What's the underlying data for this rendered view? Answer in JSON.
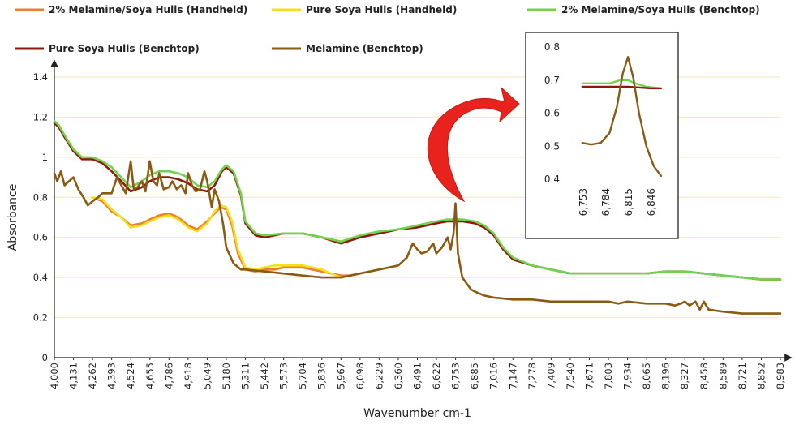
{
  "chart_data": [
    {
      "type": "line",
      "title": "",
      "xlabel": "Wavenumber cm-1",
      "ylabel": "Absorbance",
      "xlim": [
        4000,
        8983
      ],
      "ylim": [
        0,
        1.4
      ],
      "yticks": [
        "0",
        "0.2",
        "0.4",
        "0.6",
        "0.8",
        "1",
        "1.2",
        "1.4"
      ],
      "xticks": [
        "4,000",
        "4,131",
        "4,262",
        "4,393",
        "4,524",
        "4,655",
        "4,786",
        "4,918",
        "5,049",
        "5,180",
        "5,311",
        "5,442",
        "5,573",
        "5,704",
        "5,836",
        "5,967",
        "6,098",
        "6,229",
        "6,360",
        "6,491",
        "6,622",
        "6,753",
        "6,885",
        "7,016",
        "7,147",
        "7,278",
        "7,409",
        "7,540",
        "7,671",
        "7,803",
        "7,934",
        "8,065",
        "8,196",
        "8,327",
        "8,458",
        "8,589",
        "8,721",
        "8,852",
        "8,983"
      ],
      "grid": "horizontal",
      "legend_position": "top",
      "series": [
        {
          "name": "2% Melamine/Soya Hulls (Handheld)",
          "color": "#ed7d31",
          "x": [
            4262,
            4330,
            4393,
            4460,
            4524,
            4600,
            4655,
            4720,
            4786,
            4850,
            4918,
            4980,
            5049,
            5100,
            5140,
            5180,
            5220,
            5260,
            5311,
            5380,
            5442,
            5510,
            5573,
            5640,
            5704,
            5770,
            5836,
            5900,
            5967,
            6030,
            6098
          ],
          "values": [
            0.8,
            0.78,
            0.73,
            0.7,
            0.66,
            0.67,
            0.69,
            0.71,
            0.72,
            0.7,
            0.66,
            0.64,
            0.68,
            0.72,
            0.75,
            0.74,
            0.66,
            0.52,
            0.44,
            0.43,
            0.44,
            0.44,
            0.45,
            0.45,
            0.45,
            0.44,
            0.43,
            0.42,
            0.41,
            0.41,
            0.42
          ]
        },
        {
          "name": "Pure Soya Hulls (Handheld)",
          "color": "#f2e01a",
          "x": [
            4262,
            4330,
            4393,
            4460,
            4524,
            4600,
            4655,
            4720,
            4786,
            4850,
            4918,
            4980,
            5049,
            5100,
            5140,
            5180,
            5220,
            5260,
            5311,
            5380,
            5442,
            5510,
            5573,
            5640,
            5704,
            5770,
            5836,
            5900,
            5967,
            6030,
            6098
          ],
          "values": [
            0.8,
            0.79,
            0.74,
            0.7,
            0.65,
            0.66,
            0.68,
            0.7,
            0.71,
            0.69,
            0.65,
            0.63,
            0.67,
            0.73,
            0.76,
            0.75,
            0.68,
            0.54,
            0.45,
            0.44,
            0.45,
            0.46,
            0.46,
            0.46,
            0.46,
            0.45,
            0.44,
            0.42,
            0.4,
            0.41,
            0.42
          ]
        },
        {
          "name": "2% Melamine/Soya Hulls (Benchtop)",
          "color": "#70d24e",
          "x": [
            4000,
            4030,
            4070,
            4131,
            4190,
            4262,
            4330,
            4393,
            4460,
            4524,
            4600,
            4655,
            4720,
            4786,
            4850,
            4918,
            4980,
            5049,
            5100,
            5150,
            5180,
            5230,
            5280,
            5311,
            5380,
            5442,
            5573,
            5704,
            5836,
            5967,
            6098,
            6229,
            6360,
            6491,
            6622,
            6700,
            6753,
            6800,
            6885,
            6950,
            7016,
            7080,
            7147,
            7278,
            7409,
            7540,
            7671,
            7803,
            7934,
            8065,
            8196,
            8327,
            8458,
            8589,
            8721,
            8852,
            8983
          ],
          "values": [
            1.18,
            1.16,
            1.11,
            1.04,
            1.0,
            1.0,
            0.98,
            0.95,
            0.9,
            0.85,
            0.88,
            0.91,
            0.93,
            0.93,
            0.92,
            0.9,
            0.86,
            0.85,
            0.88,
            0.94,
            0.96,
            0.93,
            0.82,
            0.68,
            0.62,
            0.61,
            0.62,
            0.62,
            0.6,
            0.58,
            0.61,
            0.63,
            0.64,
            0.66,
            0.68,
            0.69,
            0.69,
            0.69,
            0.68,
            0.66,
            0.62,
            0.55,
            0.5,
            0.46,
            0.44,
            0.42,
            0.42,
            0.42,
            0.42,
            0.42,
            0.43,
            0.43,
            0.42,
            0.41,
            0.4,
            0.39,
            0.39
          ]
        },
        {
          "name": "Pure Soya Hulls (Benchtop)",
          "color": "#8b1a0a",
          "x": [
            4000,
            4030,
            4070,
            4131,
            4190,
            4262,
            4330,
            4393,
            4460,
            4524,
            4600,
            4655,
            4720,
            4786,
            4850,
            4918,
            4980,
            5049,
            5100,
            5150,
            5180,
            5230,
            5280,
            5311,
            5380,
            5442,
            5573,
            5704,
            5836,
            5967,
            6098,
            6229,
            6360,
            6491,
            6622,
            6700,
            6753,
            6800,
            6885,
            6950,
            7016,
            7080,
            7147,
            7278,
            7409,
            7540,
            7671,
            7803,
            7934,
            8065,
            8196,
            8327,
            8458,
            8589,
            8721,
            8852,
            8983
          ],
          "values": [
            1.17,
            1.15,
            1.1,
            1.03,
            0.99,
            0.99,
            0.97,
            0.93,
            0.88,
            0.83,
            0.85,
            0.88,
            0.9,
            0.9,
            0.89,
            0.87,
            0.84,
            0.83,
            0.86,
            0.93,
            0.95,
            0.92,
            0.81,
            0.67,
            0.61,
            0.6,
            0.62,
            0.62,
            0.6,
            0.57,
            0.6,
            0.62,
            0.64,
            0.65,
            0.67,
            0.68,
            0.68,
            0.68,
            0.67,
            0.65,
            0.61,
            0.54,
            0.49,
            0.46,
            0.44,
            0.42,
            0.42,
            0.42,
            0.42,
            0.42,
            0.43,
            0.43,
            0.42,
            0.41,
            0.4,
            0.39,
            0.39
          ]
        },
        {
          "name": "Melamine (Benchtop)",
          "color": "#8a5a12",
          "x": [
            4000,
            4020,
            4045,
            4070,
            4100,
            4131,
            4165,
            4200,
            4230,
            4262,
            4300,
            4330,
            4393,
            4430,
            4460,
            4490,
            4524,
            4545,
            4570,
            4600,
            4625,
            4655,
            4680,
            4705,
            4720,
            4750,
            4786,
            4810,
            4840,
            4870,
            4900,
            4918,
            4945,
            4970,
            5000,
            5030,
            5049,
            5080,
            5100,
            5130,
            5160,
            5180,
            5230,
            5280,
            5311,
            5442,
            5573,
            5704,
            5836,
            5967,
            6098,
            6229,
            6360,
            6420,
            6460,
            6491,
            6520,
            6560,
            6600,
            6622,
            6660,
            6700,
            6720,
            6740,
            6753,
            6770,
            6800,
            6830,
            6860,
            6885,
            6950,
            7016,
            7147,
            7278,
            7409,
            7540,
            7671,
            7803,
            7870,
            7934,
            8065,
            8196,
            8260,
            8300,
            8327,
            8360,
            8400,
            8430,
            8458,
            8490,
            8589,
            8721,
            8852,
            8983
          ],
          "values": [
            0.92,
            0.88,
            0.93,
            0.86,
            0.88,
            0.9,
            0.84,
            0.8,
            0.76,
            0.78,
            0.8,
            0.82,
            0.82,
            0.9,
            0.86,
            0.82,
            0.98,
            0.84,
            0.85,
            0.88,
            0.83,
            0.98,
            0.88,
            0.86,
            0.92,
            0.84,
            0.85,
            0.88,
            0.84,
            0.86,
            0.82,
            0.92,
            0.86,
            0.83,
            0.84,
            0.93,
            0.88,
            0.75,
            0.84,
            0.78,
            0.66,
            0.55,
            0.47,
            0.44,
            0.44,
            0.43,
            0.42,
            0.41,
            0.4,
            0.4,
            0.42,
            0.44,
            0.46,
            0.5,
            0.57,
            0.54,
            0.52,
            0.53,
            0.57,
            0.52,
            0.55,
            0.6,
            0.54,
            0.62,
            0.77,
            0.52,
            0.4,
            0.37,
            0.34,
            0.33,
            0.31,
            0.3,
            0.29,
            0.29,
            0.28,
            0.28,
            0.28,
            0.28,
            0.27,
            0.28,
            0.27,
            0.27,
            0.26,
            0.27,
            0.28,
            0.26,
            0.28,
            0.24,
            0.28,
            0.24,
            0.23,
            0.22,
            0.22,
            0.22
          ]
        }
      ]
    },
    {
      "type": "line",
      "title": "",
      "xlim": [
        6740,
        6870
      ],
      "ylim": [
        0.4,
        0.8
      ],
      "yticks": [
        "0.4",
        "0.5",
        "0.6",
        "0.7",
        "0.8"
      ],
      "xticks": [
        "6,753",
        "6,784",
        "6,815",
        "6,846"
      ],
      "grid": "none",
      "series": [
        {
          "name": "2% Melamine/Soya Hulls (Benchtop)",
          "color": "#70d24e",
          "x": [
            6753,
            6770,
            6790,
            6805,
            6815,
            6825,
            6840,
            6860
          ],
          "values": [
            0.69,
            0.69,
            0.69,
            0.7,
            0.7,
            0.69,
            0.68,
            0.675
          ]
        },
        {
          "name": "Pure Soya Hulls (Benchtop)",
          "color": "#8b1a0a",
          "x": [
            6753,
            6784,
            6815,
            6846,
            6860
          ],
          "values": [
            0.68,
            0.68,
            0.68,
            0.675,
            0.675
          ]
        },
        {
          "name": "Melamine (Benchtop)",
          "color": "#8a5a12",
          "x": [
            6753,
            6765,
            6778,
            6790,
            6800,
            6808,
            6815,
            6822,
            6830,
            6840,
            6850,
            6860
          ],
          "values": [
            0.51,
            0.505,
            0.51,
            0.54,
            0.62,
            0.72,
            0.77,
            0.71,
            0.6,
            0.5,
            0.44,
            0.41
          ]
        }
      ]
    }
  ]
}
